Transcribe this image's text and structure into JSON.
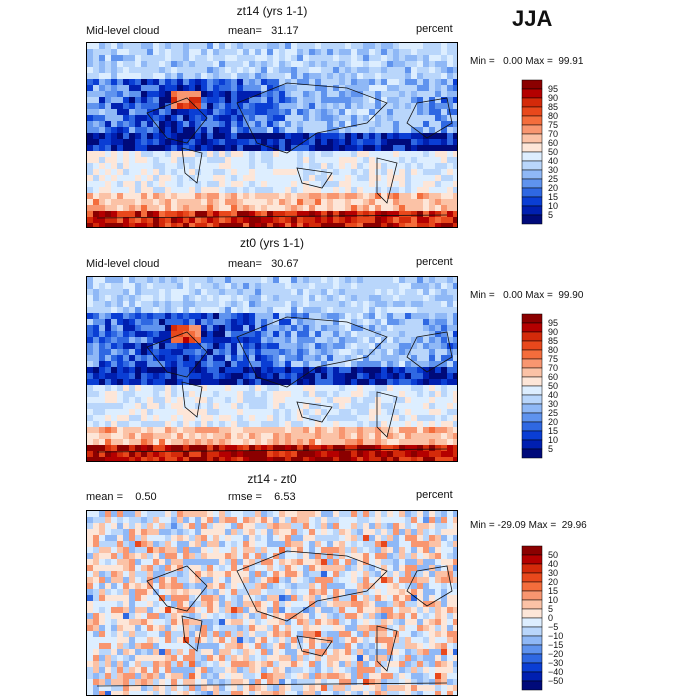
{
  "season": "JJA",
  "chart_data": [
    {
      "type": "heatmap",
      "title": "zt14 (yrs 1-1)",
      "variable": "Mid-level cloud",
      "stat1": "mean=   31.17",
      "unit": "percent",
      "range_text": "Min =   0.00 Max =  99.91",
      "min": 0.0,
      "max": 99.91,
      "colorbar_levels": [
        95,
        90,
        85,
        80,
        75,
        70,
        60,
        50,
        40,
        30,
        25,
        20,
        15,
        10,
        5
      ],
      "colorbar_colors": [
        "#8b0000",
        "#b40000",
        "#d42a0a",
        "#e8481c",
        "#f46d3c",
        "#f89670",
        "#fbc2a6",
        "#fde6d8",
        "#ddeeff",
        "#b9d6fb",
        "#8fb8f6",
        "#5f93ee",
        "#2f68e2",
        "#0a3ed4",
        "#001fb0",
        "#000a7a"
      ],
      "pattern": "a"
    },
    {
      "type": "heatmap",
      "title": "zt0 (yrs 1-1)",
      "variable": "Mid-level cloud",
      "stat1": "mean=   30.67",
      "unit": "percent",
      "range_text": "Min =   0.00 Max =  99.90",
      "min": 0.0,
      "max": 99.9,
      "colorbar_levels": [
        95,
        90,
        85,
        80,
        75,
        70,
        60,
        50,
        40,
        30,
        25,
        20,
        15,
        10,
        5
      ],
      "colorbar_colors": [
        "#8b0000",
        "#b40000",
        "#d42a0a",
        "#e8481c",
        "#f46d3c",
        "#f89670",
        "#fbc2a6",
        "#fde6d8",
        "#ddeeff",
        "#b9d6fb",
        "#8fb8f6",
        "#5f93ee",
        "#2f68e2",
        "#0a3ed4",
        "#001fb0",
        "#000a7a"
      ],
      "pattern": "b"
    },
    {
      "type": "heatmap",
      "title": "zt14 - zt0",
      "stat1": "mean =    0.50",
      "stat2": "rmse =    6.53",
      "unit": "percent",
      "range_text": "Min = -29.09 Max =  29.96",
      "min": -29.09,
      "max": 29.96,
      "colorbar_levels": [
        50,
        40,
        30,
        20,
        15,
        10,
        5,
        0,
        -5,
        -10,
        -15,
        -20,
        -30,
        -40,
        -50
      ],
      "colorbar_colors": [
        "#8b0000",
        "#b40000",
        "#d42a0a",
        "#e8481c",
        "#f46d3c",
        "#f89670",
        "#fbc2a6",
        "#fde6d8",
        "#ddeeff",
        "#b9d6fb",
        "#8fb8f6",
        "#5f93ee",
        "#2f68e2",
        "#0a3ed4",
        "#001fb0",
        "#000a7a"
      ],
      "pattern": "diff"
    }
  ]
}
